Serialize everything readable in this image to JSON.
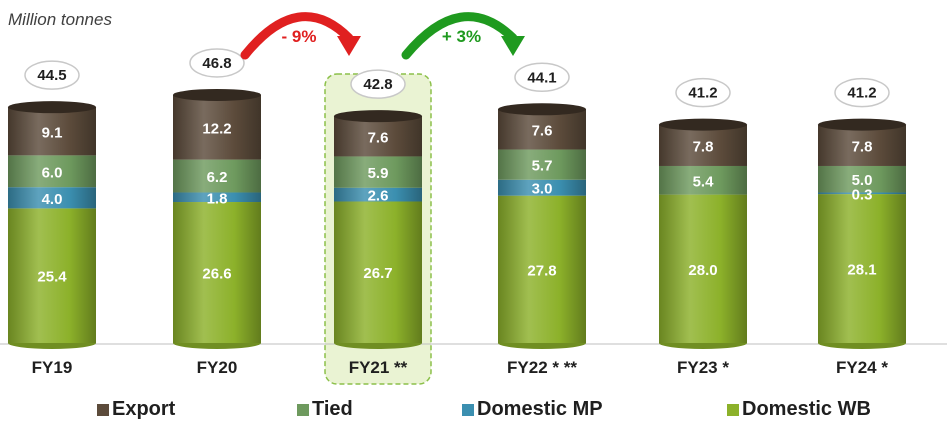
{
  "chart_data": {
    "type": "bar",
    "stacked": true,
    "unit_label": "Million tonnes",
    "categories": [
      "FY19",
      "FY20",
      "FY21 **",
      "FY22 * **",
      "FY23 *",
      "FY24 *"
    ],
    "highlighted_category": "FY21 **",
    "series": [
      {
        "name": "Domestic WB",
        "color": "#8cb12a",
        "values": [
          25.4,
          26.6,
          26.7,
          27.8,
          28.0,
          28.1
        ]
      },
      {
        "name": "Domestic MP",
        "color": "#3b8fb0",
        "values": [
          4.0,
          1.8,
          2.6,
          3.0,
          null,
          0.3
        ]
      },
      {
        "name": "Tied",
        "color": "#6e9a5e",
        "values": [
          6.0,
          6.2,
          5.9,
          5.7,
          5.4,
          5.0
        ]
      },
      {
        "name": "Export",
        "color": "#5c4b3b",
        "values": [
          9.1,
          12.2,
          7.6,
          7.6,
          7.8,
          7.8
        ]
      }
    ],
    "totals": [
      44.5,
      46.8,
      42.8,
      44.1,
      41.2,
      41.2
    ],
    "annotations": [
      {
        "label": "- 9%",
        "from": "FY20",
        "to": "FY21 **",
        "color": "#e02020"
      },
      {
        "label": "+ 3%",
        "from": "FY21 **",
        "to": "FY22 * **",
        "color": "#1f9a1f"
      }
    ],
    "legend_order": [
      "Export",
      "Tied",
      "Domestic MP",
      "Domestic WB"
    ],
    "legend_position": "bottom",
    "grid": false
  }
}
